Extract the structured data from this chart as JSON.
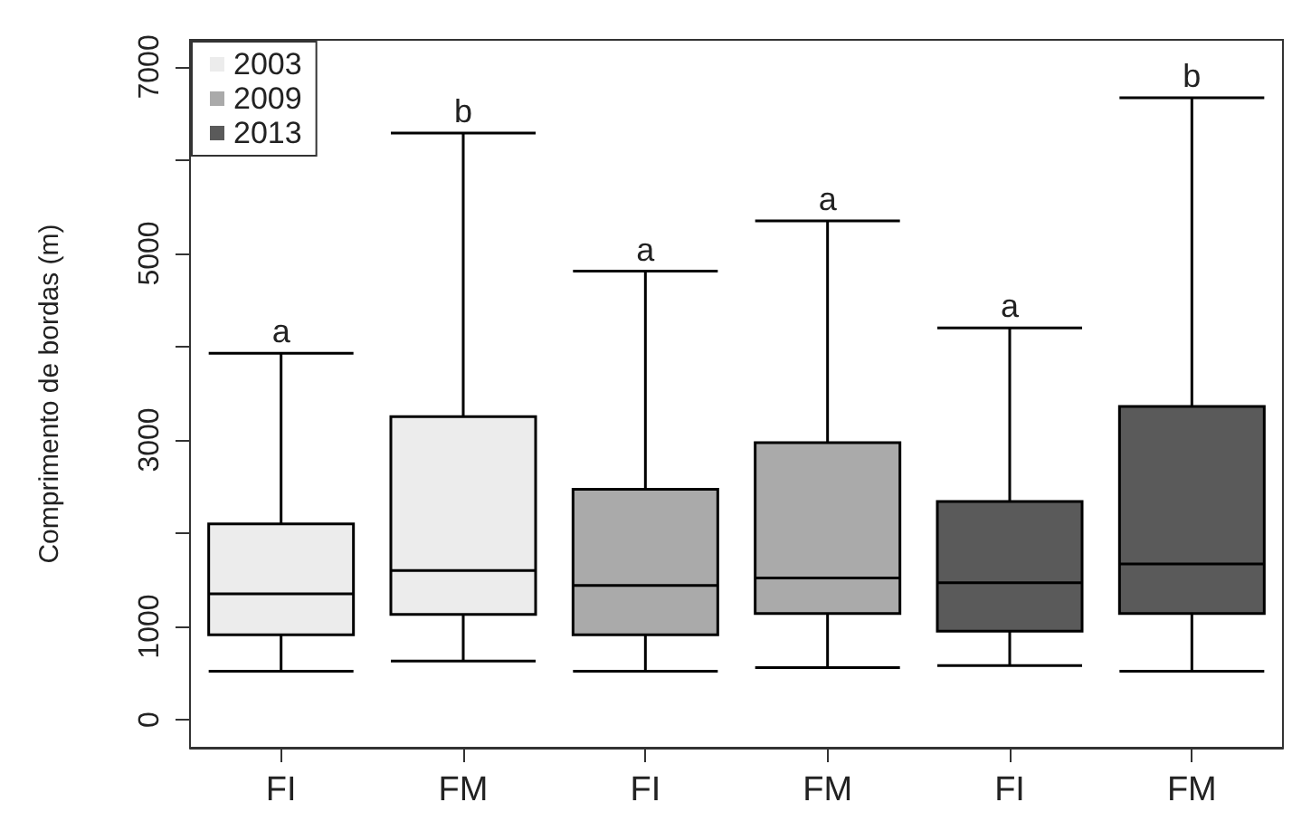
{
  "chart_data": {
    "type": "box",
    "ylabel": "Comprimento de bordas (m)",
    "categories": [
      "FI",
      "FM",
      "FI",
      "FM",
      "FI",
      "FM"
    ],
    "series": [
      {
        "name": "2003",
        "color": "#ececec",
        "boxes": [
          {
            "low": 520,
            "q1": 910,
            "median": 1350,
            "q3": 2100,
            "high": 3930
          },
          {
            "low": 630,
            "q1": 1130,
            "median": 1600,
            "q3": 3250,
            "high": 6290
          },
          null,
          null,
          null,
          null
        ]
      },
      {
        "name": "2009",
        "color": "#aaaaaa",
        "boxes": [
          null,
          null,
          {
            "low": 520,
            "q1": 910,
            "median": 1440,
            "q3": 2470,
            "high": 4810
          },
          {
            "low": 560,
            "q1": 1140,
            "median": 1520,
            "q3": 2970,
            "high": 5350
          },
          null,
          null
        ]
      },
      {
        "name": "2013",
        "color": "#5a5a5a",
        "boxes": [
          null,
          null,
          null,
          null,
          {
            "low": 580,
            "q1": 950,
            "median": 1470,
            "q3": 2340,
            "high": 4200
          },
          {
            "low": 520,
            "q1": 1140,
            "median": 1670,
            "q3": 3360,
            "high": 6670
          }
        ]
      }
    ],
    "ylim": [
      -300,
      7290
    ],
    "yticks": [
      0,
      1000,
      {
        "value": 2000,
        "label": null
      },
      3000,
      {
        "value": 4000,
        "label": null
      },
      5000,
      {
        "value": 6000,
        "label": null
      },
      7000
    ],
    "annotations": [
      "a",
      "b",
      "a",
      "a",
      "a",
      "b"
    ],
    "legend": "top left",
    "grid": false
  }
}
